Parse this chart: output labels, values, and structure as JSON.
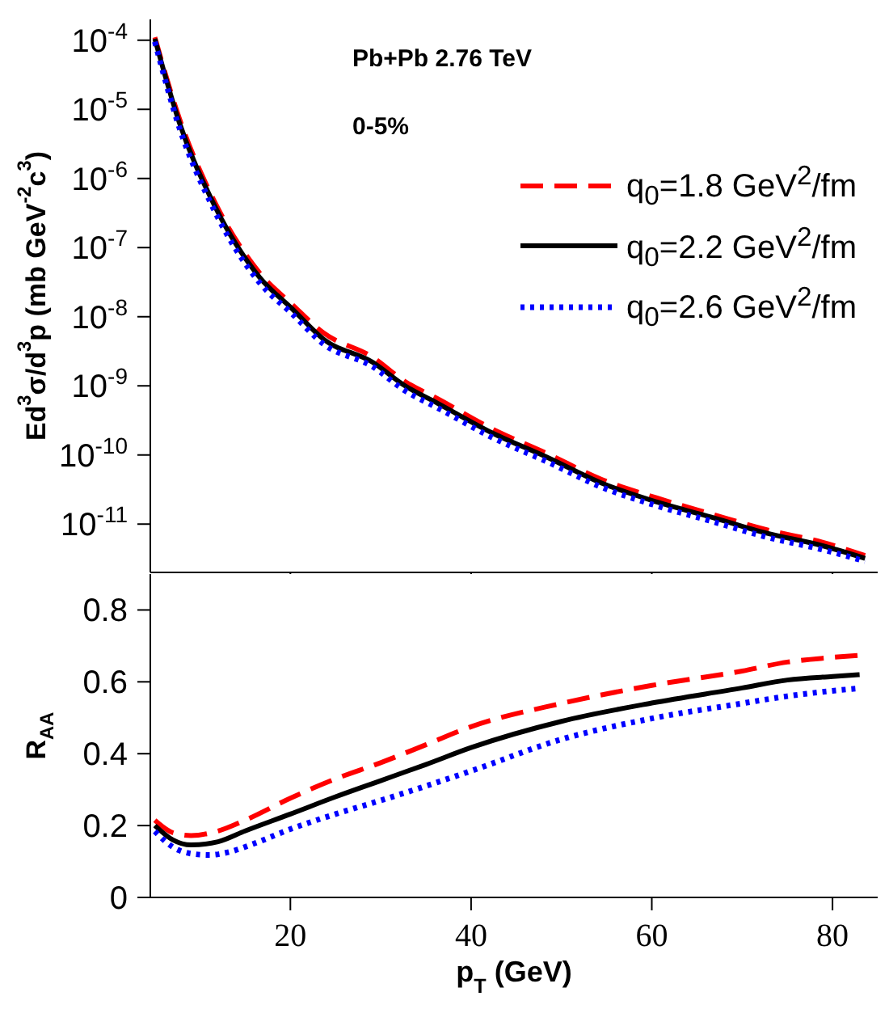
{
  "chart_data": [
    {
      "type": "line",
      "ylabel": "Ed$^{3}$σ/d$^{3}$p (mb GeV$^{-2}$c$^{3}$)",
      "annotations": [
        "Pb+Pb 2.76 TeV",
        "0-5%"
      ],
      "log": "y",
      "xlim": [
        4.5,
        85
      ],
      "xticks": [
        {
          "value": 20,
          "label": null
        },
        {
          "value": 40,
          "label": null
        },
        {
          "value": 60,
          "label": null
        },
        {
          "value": 80,
          "label": null
        }
      ],
      "ylim": [
        2e-12,
        0.0002
      ],
      "yticks": [
        {
          "value": 1e-11,
          "label": "10$^{-11}$"
        },
        {
          "value": 1e-10,
          "label": "10$^{-10}$"
        },
        {
          "value": 1e-09,
          "label": "10$^{-9}$"
        },
        {
          "value": 1e-08,
          "label": "10$^{-8}$"
        },
        {
          "value": 1e-07,
          "label": "10$^{-7}$"
        },
        {
          "value": 1e-06,
          "label": "10$^{-6}$"
        },
        {
          "value": 1e-05,
          "label": "10$^{-5}$"
        },
        {
          "value": 0.0001,
          "label": "10$^{-4}$"
        }
      ],
      "tick_labels": "y",
      "legend": "top right",
      "series": [
        {
          "name": "q$_{0}$=1.8 GeV$^{2}$/fm",
          "color": "#ff0000",
          "line_style": "dashed",
          "x": [
            5,
            7.7,
            11.3,
            16.6,
            20.2,
            23.7,
            29.1,
            32.7,
            36.3,
            42.3,
            48.4,
            54.5,
            60.5,
            66.6,
            72.7,
            78.8,
            83.6
          ],
          "values": [
            0.00011,
            7.5e-06,
            5.6e-07,
            4.3e-08,
            1.5e-08,
            5.8e-09,
            2.6e-09,
            1.15e-09,
            6.5e-10,
            2.4e-10,
            1.05e-10,
            4.4e-11,
            2.4e-11,
            1.4e-11,
            8.3e-12,
            5.5e-12,
            3.5e-12
          ]
        },
        {
          "name": "q$_{0}$=2.2 GeV$^{2}$/fm",
          "color": "#000000",
          "line_style": "solid",
          "x": [
            5,
            7.7,
            11.3,
            16.6,
            20.2,
            23.7,
            29.1,
            32.7,
            36.3,
            42.3,
            48.4,
            54.5,
            60.5,
            66.6,
            72.7,
            78.8,
            83.6
          ],
          "values": [
            0.000105,
            6.5e-06,
            4.9e-07,
            3.7e-08,
            1.3e-08,
            4.7e-09,
            2.2e-09,
            1e-09,
            5.6e-10,
            2.1e-10,
            9.3e-11,
            3.9e-11,
            2.1e-11,
            1.26e-11,
            7.4e-12,
            4.9e-12,
            3.2e-12
          ]
        },
        {
          "name": "q$_{0}$=2.6 GeV$^{2}$/fm",
          "color": "#0000ff",
          "line_style": "dotted",
          "x": [
            5,
            7.7,
            11.3,
            16.6,
            20.2,
            23.7,
            29.1,
            32.7,
            36.3,
            42.3,
            48.4,
            54.5,
            60.5,
            66.6,
            72.7,
            78.8,
            83.6
          ],
          "values": [
            9.5e-05,
            5.5e-06,
            4.1e-07,
            3.1e-08,
            1.1e-08,
            4e-09,
            1.9e-09,
            8.5e-10,
            4.8e-10,
            1.8e-10,
            8e-11,
            3.4e-11,
            1.85e-11,
            1.1e-11,
            6.5e-12,
            4.3e-12,
            2.9e-12
          ]
        }
      ]
    },
    {
      "type": "line",
      "xlabel": "p$_{T}$ (GeV)",
      "ylabel": "R$_{AA}$",
      "xlim": [
        4.5,
        85
      ],
      "xticks": [
        20,
        40,
        60,
        80
      ],
      "ylim": [
        0,
        0.9
      ],
      "yticks": [
        0,
        0.2,
        0.4,
        0.6,
        0.8
      ],
      "series": [
        {
          "color": "#ff0000",
          "line_style": "dashed",
          "x": [
            5,
            7,
            9,
            12,
            15,
            20,
            25,
            30,
            35,
            40,
            50,
            60,
            70,
            75,
            80,
            83
          ],
          "values": [
            0.215,
            0.18,
            0.172,
            0.185,
            0.215,
            0.276,
            0.33,
            0.375,
            0.425,
            0.475,
            0.54,
            0.59,
            0.63,
            0.655,
            0.668,
            0.674
          ]
        },
        {
          "color": "#000000",
          "line_style": "solid",
          "x": [
            5,
            7,
            9,
            12,
            15,
            20,
            25,
            30,
            35,
            40,
            50,
            60,
            70,
            75,
            80,
            83
          ],
          "values": [
            0.2,
            0.16,
            0.146,
            0.155,
            0.185,
            0.232,
            0.28,
            0.325,
            0.37,
            0.417,
            0.49,
            0.541,
            0.583,
            0.605,
            0.615,
            0.62
          ]
        },
        {
          "color": "#0000ff",
          "line_style": "dotted",
          "x": [
            5,
            7,
            9,
            11,
            13,
            16,
            20,
            25,
            30,
            35,
            40,
            50,
            60,
            70,
            75,
            80,
            83
          ],
          "values": [
            0.184,
            0.14,
            0.122,
            0.118,
            0.125,
            0.15,
            0.19,
            0.232,
            0.27,
            0.31,
            0.352,
            0.44,
            0.498,
            0.54,
            0.56,
            0.575,
            0.582
          ]
        }
      ]
    }
  ]
}
